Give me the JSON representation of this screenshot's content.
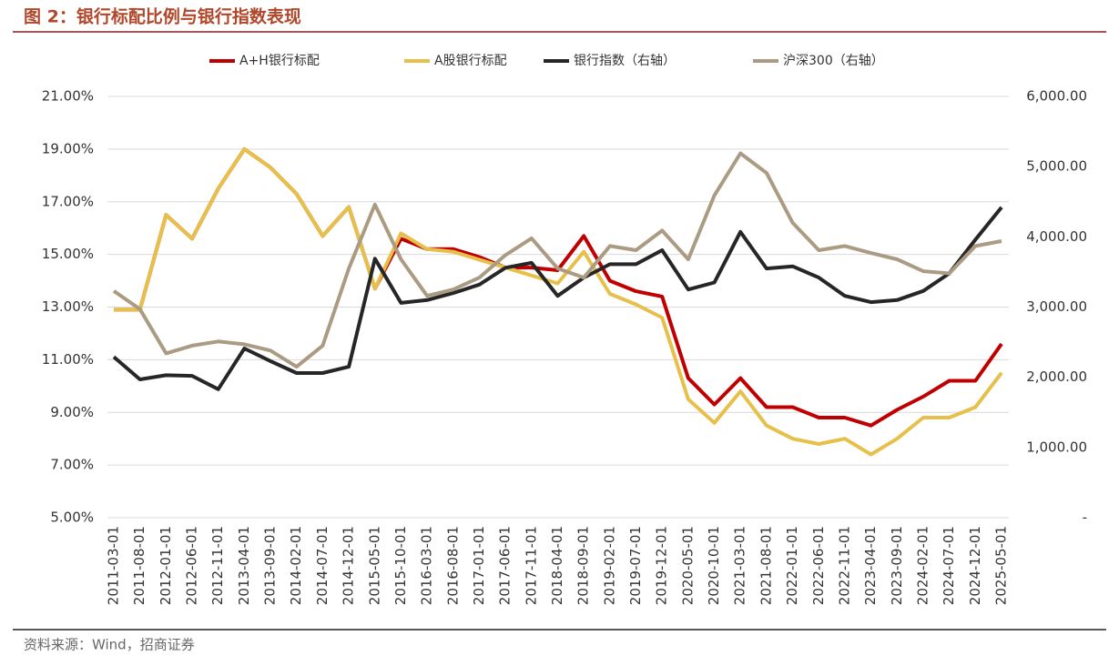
{
  "chart_data": {
    "type": "line",
    "title": "图 2：银行标配比例与银行指数表现",
    "source": "资料来源：Wind，招商证券",
    "categories": [
      "2011-03-01",
      "2011-08-01",
      "2012-01-01",
      "2012-06-01",
      "2012-11-01",
      "2013-04-01",
      "2013-09-01",
      "2014-02-01",
      "2014-07-01",
      "2014-12-01",
      "2015-05-01",
      "2015-10-01",
      "2016-03-01",
      "2016-08-01",
      "2017-01-01",
      "2017-06-01",
      "2017-11-01",
      "2018-04-01",
      "2018-09-01",
      "2019-02-01",
      "2019-07-01",
      "2019-12-01",
      "2020-05-01",
      "2020-10-01",
      "2021-03-01",
      "2021-08-01",
      "2022-01-01",
      "2022-06-01",
      "2022-11-01",
      "2023-04-01",
      "2023-09-01",
      "2024-02-01",
      "2024-07-01",
      "2024-12-01",
      "2025-05-01"
    ],
    "series": [
      {
        "name": "A+H银行标配",
        "color": "#c00000",
        "axis": "y",
        "values": [
          12.9,
          12.9,
          16.5,
          15.6,
          17.5,
          19.0,
          18.3,
          17.3,
          15.7,
          16.8,
          13.7,
          15.6,
          15.2,
          15.2,
          14.9,
          14.5,
          14.5,
          14.4,
          15.7,
          14.0,
          13.6,
          13.4,
          10.3,
          9.3,
          10.3,
          9.2,
          9.2,
          8.8,
          8.8,
          8.5,
          9.1,
          9.6,
          10.2,
          10.2,
          11.6
        ]
      },
      {
        "name": "A股银行标配",
        "color": "#e6c04a",
        "axis": "y",
        "values": [
          12.9,
          12.9,
          16.5,
          15.6,
          17.5,
          19.0,
          18.3,
          17.3,
          15.7,
          16.8,
          13.7,
          15.8,
          15.2,
          15.1,
          14.8,
          14.5,
          14.2,
          13.9,
          15.1,
          13.5,
          13.1,
          12.6,
          9.5,
          8.6,
          9.8,
          8.5,
          8.0,
          7.8,
          8.0,
          7.4,
          8.0,
          8.8,
          8.8,
          9.2,
          10.5
        ]
      },
      {
        "name": "银行指数（右轴）",
        "color": "#262626",
        "axis": "y2",
        "values": [
          2290,
          1970,
          2030,
          2020,
          1830,
          2410,
          2230,
          2060,
          2060,
          2150,
          3690,
          3060,
          3100,
          3200,
          3320,
          3560,
          3630,
          3160,
          3420,
          3610,
          3610,
          3810,
          3250,
          3350,
          4070,
          3550,
          3580,
          3420,
          3160,
          3070,
          3100,
          3230,
          3480,
          3960,
          4420
        ]
      },
      {
        "name": "沪深300（右轴）",
        "color": "#ab9b83",
        "axis": "y2",
        "values": [
          3230,
          2970,
          2340,
          2450,
          2510,
          2470,
          2380,
          2150,
          2450,
          3550,
          4460,
          3680,
          3160,
          3250,
          3420,
          3740,
          3980,
          3550,
          3420,
          3870,
          3810,
          4090,
          3680,
          4590,
          5190,
          4910,
          4200,
          3810,
          3870,
          3770,
          3680,
          3510,
          3480,
          3870,
          3940
        ]
      }
    ],
    "ylim": [
      5,
      21
    ],
    "yticks": [
      {
        "value": 5,
        "label": "5.00%"
      },
      {
        "value": 7,
        "label": "7.00%"
      },
      {
        "value": 9,
        "label": "9.00%"
      },
      {
        "value": 11,
        "label": "11.00%"
      },
      {
        "value": 13,
        "label": "13.00%"
      },
      {
        "value": 15,
        "label": "15.00%"
      },
      {
        "value": 17,
        "label": "17.00%"
      },
      {
        "value": 19,
        "label": "19.00%"
      },
      {
        "value": 21,
        "label": "21.00%"
      }
    ],
    "y2lim": [
      0,
      6000
    ],
    "y2ticks": [
      {
        "value": 0,
        "label": "-"
      },
      {
        "value": 1000,
        "label": "1,000.00"
      },
      {
        "value": 2000,
        "label": "2,000.00"
      },
      {
        "value": 3000,
        "label": "3,000.00"
      },
      {
        "value": 4000,
        "label": "4,000.00"
      },
      {
        "value": 5000,
        "label": "5,000.00"
      },
      {
        "value": 6000,
        "label": "6,000.00"
      }
    ],
    "grid": true,
    "legend": "top"
  }
}
